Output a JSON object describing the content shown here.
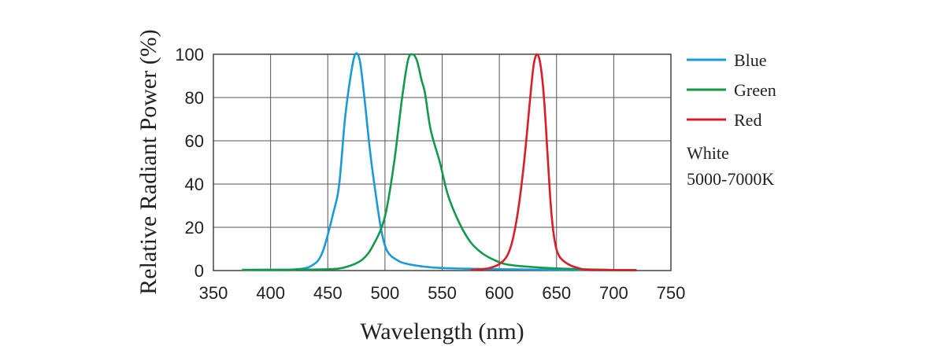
{
  "chart_data": {
    "type": "line",
    "title": "",
    "xlabel": "Wavelength (nm)",
    "ylabel": "Relative Radiant Power (%)",
    "xlim": [
      350,
      750
    ],
    "ylim": [
      0,
      100
    ],
    "x_ticks": [
      350,
      400,
      450,
      500,
      550,
      600,
      650,
      700,
      750
    ],
    "y_ticks": [
      0,
      20,
      40,
      60,
      80,
      100
    ],
    "grid": true,
    "legend_position": "right",
    "series": [
      {
        "name": "Blue",
        "color": "#1a9ad6",
        "points": [
          [
            375,
            0.3
          ],
          [
            400,
            0.4
          ],
          [
            420,
            0.5
          ],
          [
            435,
            2
          ],
          [
            445,
            8
          ],
          [
            455,
            27
          ],
          [
            460,
            40
          ],
          [
            465,
            70
          ],
          [
            470,
            90
          ],
          [
            474,
            100
          ],
          [
            478,
            97
          ],
          [
            482,
            80
          ],
          [
            487,
            55
          ],
          [
            492,
            35
          ],
          [
            497,
            18
          ],
          [
            502,
            9
          ],
          [
            510,
            5
          ],
          [
            520,
            3
          ],
          [
            540,
            1.5
          ],
          [
            560,
            1
          ],
          [
            580,
            0.8
          ],
          [
            600,
            0.6
          ],
          [
            640,
            0.4
          ],
          [
            700,
            0.2
          ],
          [
            720,
            0.2
          ]
        ]
      },
      {
        "name": "Green",
        "color": "#129a4a",
        "points": [
          [
            375,
            0.3
          ],
          [
            420,
            0.4
          ],
          [
            450,
            0.6
          ],
          [
            465,
            1.5
          ],
          [
            480,
            5
          ],
          [
            490,
            12
          ],
          [
            500,
            25
          ],
          [
            508,
            50
          ],
          [
            515,
            80
          ],
          [
            520,
            97
          ],
          [
            524,
            100
          ],
          [
            528,
            97
          ],
          [
            532,
            88
          ],
          [
            535,
            82
          ],
          [
            540,
            65
          ],
          [
            548,
            50
          ],
          [
            555,
            35
          ],
          [
            565,
            22
          ],
          [
            575,
            13
          ],
          [
            585,
            8
          ],
          [
            595,
            5
          ],
          [
            605,
            3
          ],
          [
            620,
            2
          ],
          [
            650,
            1
          ],
          [
            700,
            0.3
          ],
          [
            720,
            0.2
          ]
        ]
      },
      {
        "name": "Red",
        "color": "#d91e2a",
        "points": [
          [
            575,
            0.3
          ],
          [
            590,
            1
          ],
          [
            600,
            3
          ],
          [
            607,
            7
          ],
          [
            612,
            15
          ],
          [
            617,
            30
          ],
          [
            622,
            52
          ],
          [
            627,
            80
          ],
          [
            630,
            95
          ],
          [
            633,
            100
          ],
          [
            636,
            95
          ],
          [
            639,
            80
          ],
          [
            642,
            55
          ],
          [
            645,
            30
          ],
          [
            648,
            15
          ],
          [
            652,
            7
          ],
          [
            660,
            3
          ],
          [
            670,
            1
          ],
          [
            680,
            0.3
          ],
          [
            720,
            0.2
          ]
        ]
      }
    ],
    "legend_note": [
      "White",
      "5000-7000K"
    ]
  }
}
